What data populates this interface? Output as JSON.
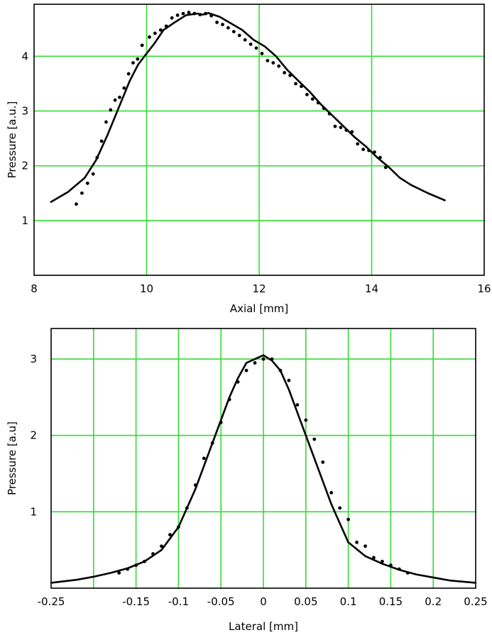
{
  "chart_data": [
    {
      "type": "scatter",
      "xlabel": "Axial [mm]",
      "ylabel": "Pressure [a.u.]",
      "xlim": [
        8,
        16
      ],
      "ylim": [
        0,
        4.95
      ],
      "xticks": [
        8,
        10,
        12,
        14,
        16
      ],
      "yticks": [
        1,
        2,
        3,
        4
      ],
      "xtick_labels": [
        "8",
        "10",
        "12",
        "14",
        "16"
      ],
      "ytick_labels": [
        "1",
        "2",
        "3",
        "4"
      ],
      "xgrid": [
        10,
        12,
        14
      ],
      "ygrid": [
        1,
        2,
        3,
        4
      ],
      "grid": true,
      "grid_color": "#33dd33",
      "series": [
        {
          "kind": "line",
          "color": "#000000",
          "x": [
            8.3,
            8.6,
            8.9,
            9.1,
            9.3,
            9.5,
            9.7,
            9.85,
            10.0,
            10.15,
            10.3,
            10.5,
            10.7,
            10.9,
            11.0,
            11.1,
            11.3,
            11.5,
            11.7,
            11.9,
            12.1,
            12.3,
            12.5,
            12.7,
            12.9,
            13.1,
            13.3,
            13.5,
            13.7,
            13.9,
            14.1,
            14.3,
            14.5,
            14.7,
            15.0,
            15.3
          ],
          "y": [
            1.34,
            1.52,
            1.78,
            2.1,
            2.55,
            3.05,
            3.55,
            3.85,
            4.05,
            4.25,
            4.48,
            4.62,
            4.75,
            4.78,
            4.76,
            4.79,
            4.72,
            4.6,
            4.48,
            4.3,
            4.18,
            4.0,
            3.75,
            3.55,
            3.35,
            3.12,
            2.92,
            2.72,
            2.52,
            2.35,
            2.15,
            1.98,
            1.78,
            1.65,
            1.5,
            1.37
          ]
        },
        {
          "kind": "points",
          "color": "#000000",
          "x": [
            8.75,
            8.85,
            8.95,
            9.05,
            9.12,
            9.2,
            9.28,
            9.36,
            9.44,
            9.52,
            9.6,
            9.68,
            9.76,
            9.84,
            9.92,
            10.05,
            10.15,
            10.25,
            10.35,
            10.45,
            10.55,
            10.65,
            10.75,
            10.85,
            10.95,
            11.05,
            11.15,
            11.25,
            11.35,
            11.45,
            11.55,
            11.65,
            11.75,
            11.85,
            11.95,
            12.05,
            12.15,
            12.25,
            12.35,
            12.45,
            12.55,
            12.65,
            12.75,
            12.85,
            12.95,
            13.05,
            13.15,
            13.25,
            13.35,
            13.45,
            13.55,
            13.65,
            13.75,
            13.85,
            13.95,
            14.05,
            14.15,
            14.25
          ],
          "y": [
            1.3,
            1.5,
            1.68,
            1.85,
            2.15,
            2.45,
            2.8,
            3.02,
            3.2,
            3.25,
            3.42,
            3.68,
            3.88,
            3.95,
            4.2,
            4.35,
            4.42,
            4.48,
            4.55,
            4.7,
            4.75,
            4.78,
            4.8,
            4.78,
            4.76,
            4.78,
            4.74,
            4.62,
            4.58,
            4.52,
            4.45,
            4.38,
            4.3,
            4.22,
            4.15,
            4.05,
            3.92,
            3.88,
            3.82,
            3.7,
            3.65,
            3.5,
            3.45,
            3.3,
            3.22,
            3.15,
            3.05,
            2.95,
            2.72,
            2.7,
            2.65,
            2.62,
            2.4,
            2.3,
            2.28,
            2.25,
            2.15,
            1.97
          ]
        }
      ]
    },
    {
      "type": "scatter",
      "xlabel": "Lateral [mm]",
      "ylabel": "Pressure [a.u]",
      "xlim": [
        -0.25,
        0.25
      ],
      "ylim": [
        0,
        3.4
      ],
      "xticks": [
        -0.25,
        -0.15,
        -0.1,
        -0.05,
        0,
        0.05,
        0.1,
        0.15,
        0.2,
        0.25
      ],
      "yticks": [
        1,
        2,
        3
      ],
      "xtick_labels": [
        "-0.25",
        "-0.15",
        "-0.1",
        "-0.05",
        "0",
        "0.05",
        "0.1",
        "0.15",
        "0.2",
        "0.25"
      ],
      "ytick_labels": [
        "1",
        "2",
        "3"
      ],
      "xgrid": [
        -0.2,
        -0.15,
        -0.1,
        -0.05,
        0,
        0.05,
        0.1,
        0.15,
        0.2
      ],
      "ygrid": [
        1,
        2,
        3
      ],
      "grid": true,
      "grid_color": "#33dd33",
      "series": [
        {
          "kind": "line",
          "color": "#000000",
          "x": [
            -0.25,
            -0.22,
            -0.2,
            -0.18,
            -0.16,
            -0.14,
            -0.12,
            -0.1,
            -0.08,
            -0.06,
            -0.04,
            -0.03,
            -0.02,
            -0.01,
            0,
            0.01,
            0.02,
            0.03,
            0.04,
            0.06,
            0.08,
            0.1,
            0.12,
            0.14,
            0.16,
            0.18,
            0.2,
            0.22,
            0.25
          ],
          "y": [
            0.07,
            0.11,
            0.15,
            0.2,
            0.26,
            0.35,
            0.5,
            0.8,
            1.3,
            1.9,
            2.5,
            2.75,
            2.95,
            3.0,
            3.05,
            2.98,
            2.85,
            2.6,
            2.3,
            1.7,
            1.1,
            0.6,
            0.42,
            0.32,
            0.24,
            0.18,
            0.14,
            0.1,
            0.07
          ]
        },
        {
          "kind": "points",
          "color": "#000000",
          "x": [
            -0.17,
            -0.16,
            -0.15,
            -0.14,
            -0.13,
            -0.12,
            -0.11,
            -0.1,
            -0.09,
            -0.08,
            -0.07,
            -0.06,
            -0.05,
            -0.04,
            -0.03,
            -0.02,
            -0.01,
            0.0,
            0.01,
            0.02,
            0.03,
            0.04,
            0.05,
            0.06,
            0.07,
            0.08,
            0.09,
            0.1,
            0.11,
            0.12,
            0.13,
            0.14,
            0.15,
            0.16,
            0.17
          ],
          "y": [
            0.2,
            0.25,
            0.3,
            0.35,
            0.45,
            0.55,
            0.7,
            0.8,
            1.05,
            1.35,
            1.7,
            1.9,
            2.17,
            2.47,
            2.7,
            2.85,
            2.95,
            3.0,
            3.0,
            2.85,
            2.72,
            2.4,
            2.2,
            1.95,
            1.65,
            1.25,
            1.05,
            0.9,
            0.6,
            0.55,
            0.4,
            0.35,
            0.3,
            0.25,
            0.2
          ]
        }
      ]
    }
  ]
}
